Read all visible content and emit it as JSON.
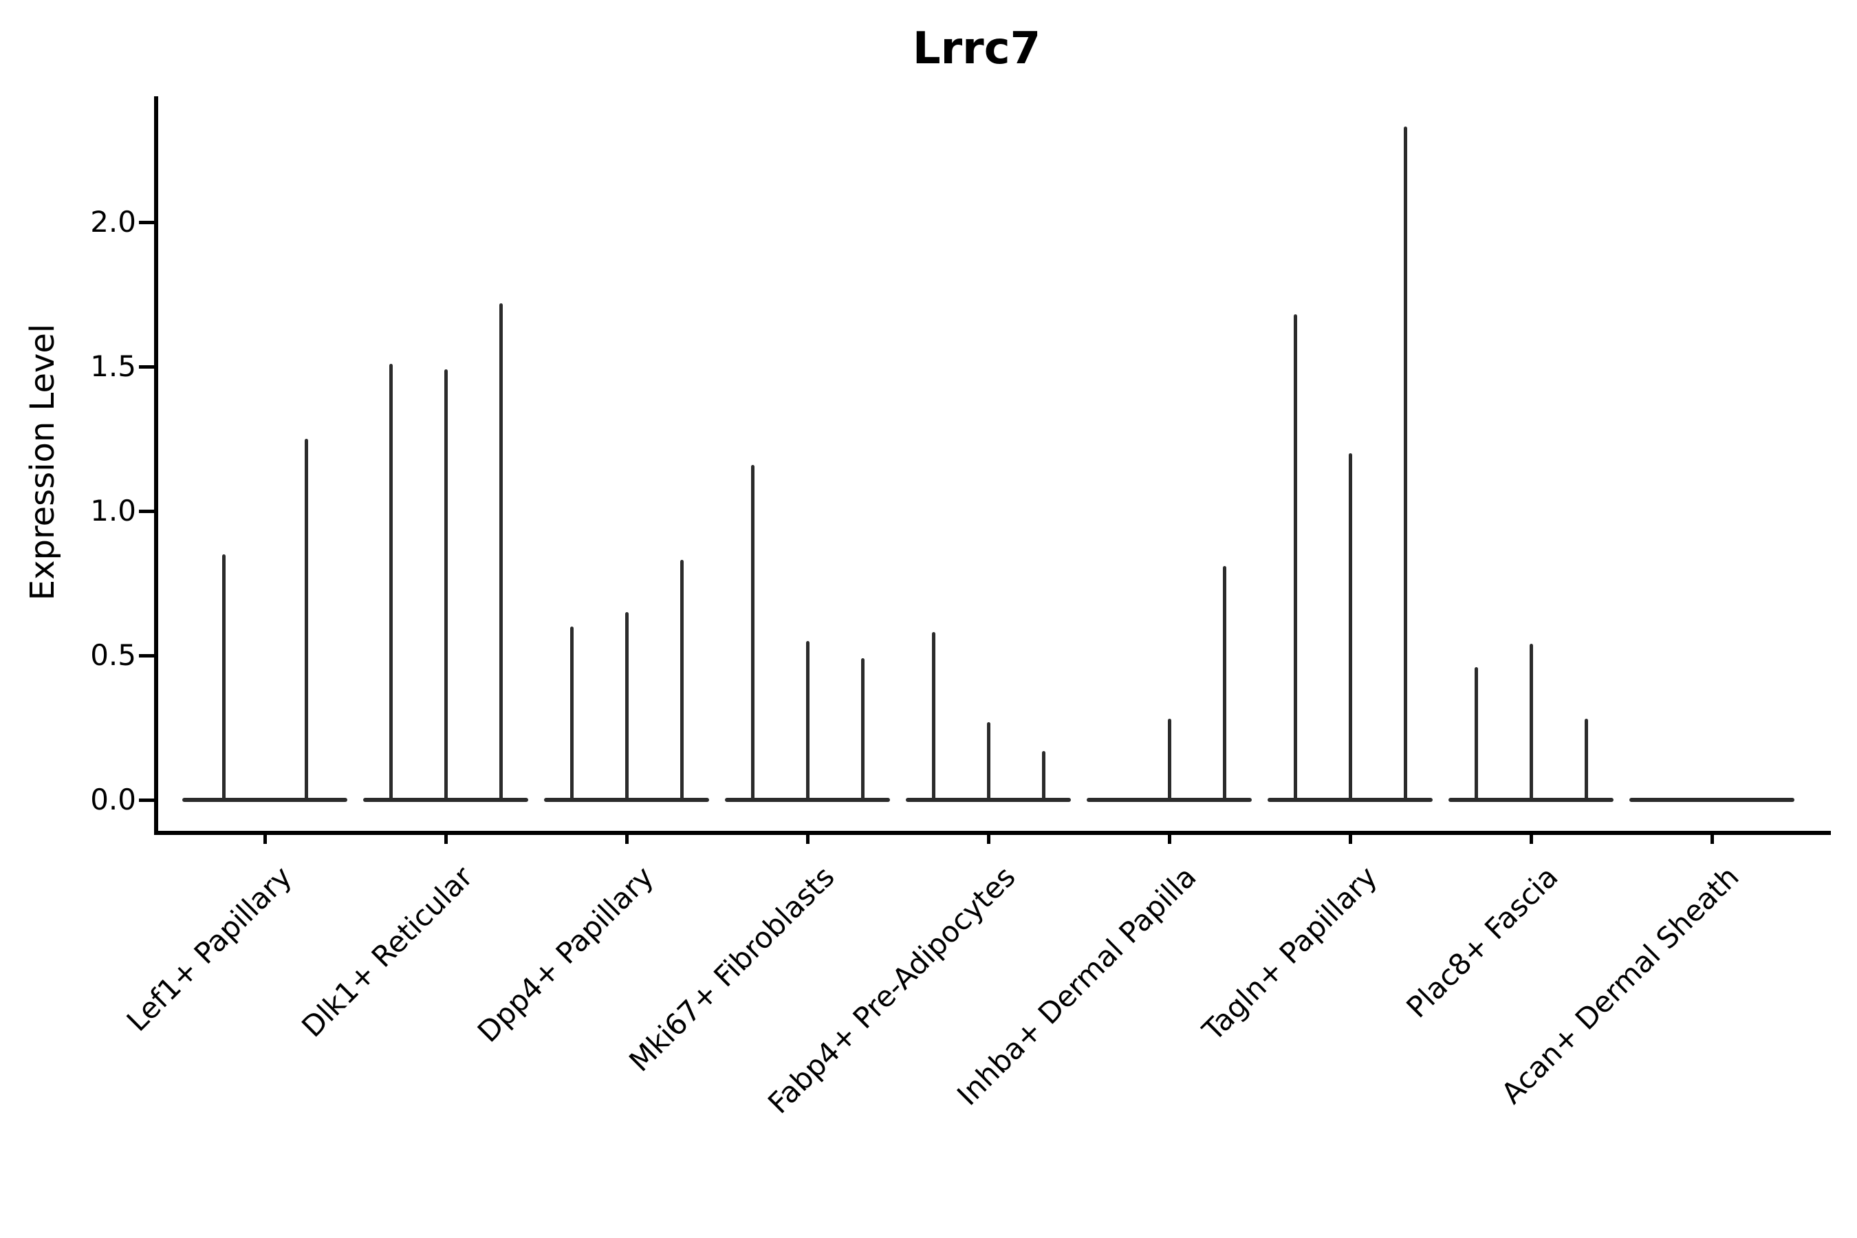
{
  "chart_data": {
    "type": "violin",
    "title": "Lrrc7",
    "xlabel": "",
    "ylabel": "Expression Level",
    "yticks": [
      0.0,
      0.5,
      1.0,
      1.5,
      2.0
    ],
    "ylim": [
      -0.11,
      2.45
    ],
    "grid": false,
    "legend": "none",
    "violin_color": "#2b2b2b",
    "axis_color": "#000000",
    "note": "stacked thin violins: mostly-zero expression, each category holds 2-3 sub-violins whose max expression is listed",
    "categories": [
      {
        "label": "Lef1+ Papillary",
        "violins": [
          {
            "offset": -60,
            "max": 0.85
          },
          {
            "offset": 60,
            "max": 1.25
          }
        ]
      },
      {
        "label": "Dlk1+ Reticular",
        "violins": [
          {
            "offset": -80,
            "max": 1.51
          },
          {
            "offset": 0,
            "max": 1.49
          },
          {
            "offset": 80,
            "max": 1.72
          }
        ]
      },
      {
        "label": "Dpp4+ Papillary",
        "violins": [
          {
            "offset": -80,
            "max": 0.6
          },
          {
            "offset": 0,
            "max": 0.65
          },
          {
            "offset": 80,
            "max": 0.83
          }
        ]
      },
      {
        "label": "Mki67+ Fibroblasts",
        "violins": [
          {
            "offset": -80,
            "max": 1.16
          },
          {
            "offset": 0,
            "max": 0.55
          },
          {
            "offset": 80,
            "max": 0.49
          }
        ]
      },
      {
        "label": "Fabp4+ Pre-Adipocytes",
        "violins": [
          {
            "offset": -80,
            "max": 0.58
          },
          {
            "offset": 0,
            "max": 0.27
          },
          {
            "offset": 80,
            "max": 0.17
          }
        ]
      },
      {
        "label": "Inhba+ Dermal Papilla",
        "violins": [
          {
            "offset": -80,
            "max": 0.0
          },
          {
            "offset": 0,
            "max": 0.28
          },
          {
            "offset": 80,
            "max": 0.81
          }
        ]
      },
      {
        "label": "Tagln+ Papillary",
        "violins": [
          {
            "offset": -80,
            "max": 1.68
          },
          {
            "offset": 0,
            "max": 1.2
          },
          {
            "offset": 80,
            "max": 2.33
          }
        ]
      },
      {
        "label": "Plac8+ Fascia",
        "violins": [
          {
            "offset": -80,
            "max": 0.46
          },
          {
            "offset": 0,
            "max": 0.54
          },
          {
            "offset": 80,
            "max": 0.28
          }
        ]
      },
      {
        "label": "Acan+ Dermal Sheath",
        "violins": [
          {
            "offset": -80,
            "max": 0.0
          },
          {
            "offset": 0,
            "max": 0.0
          },
          {
            "offset": 80,
            "max": 0.0
          }
        ]
      }
    ]
  }
}
